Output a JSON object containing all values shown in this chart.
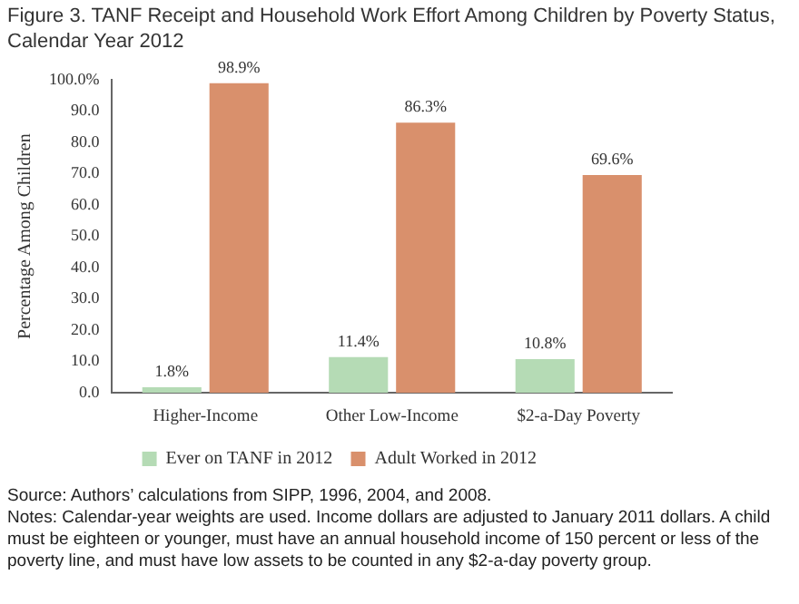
{
  "chart_data": {
    "type": "bar",
    "title": "Figure 3. TANF Receipt and Household Work Effort Among Children by Poverty Status, Calendar Year 2012",
    "ylabel": "Percentage Among Children",
    "categories": [
      "Higher-Income",
      "Other Low-Income",
      "$2-a-Day Poverty"
    ],
    "series": [
      {
        "name": "Ever on TANF in 2012",
        "color": "#b5dbb5",
        "values": [
          1.8,
          11.4,
          10.8
        ],
        "value_labels": [
          "1.8%",
          "11.4%",
          "10.8%"
        ]
      },
      {
        "name": "Adult Worked in 2012",
        "color": "#d9906c",
        "values": [
          98.9,
          86.3,
          69.6
        ],
        "value_labels": [
          "98.9%",
          "86.3%",
          "69.6%"
        ]
      }
    ],
    "ylim": [
      0,
      100
    ],
    "yticks": [
      {
        "value": 0,
        "label": "0.0"
      },
      {
        "value": 10,
        "label": "10.0"
      },
      {
        "value": 20,
        "label": "20.0"
      },
      {
        "value": 30,
        "label": "30.0"
      },
      {
        "value": 40,
        "label": "40.0"
      },
      {
        "value": 50,
        "label": "50.0"
      },
      {
        "value": 60,
        "label": "60.0"
      },
      {
        "value": 70,
        "label": "70.0"
      },
      {
        "value": 80,
        "label": "80.0"
      },
      {
        "value": 90,
        "label": "90.0"
      },
      {
        "value": 100,
        "label": "100.0%"
      }
    ],
    "grid": false,
    "legend": "bottom",
    "annotations": [
      "Source: Authors’ calculations from SIPP, 1996, 2004, and 2008.",
      "Notes: Calendar-year weights are used. Income dollars are adjusted to January 2011 dollars. A child must be eighteen or younger, must have an annual household income of 150 percent or less of the poverty line, and must have low assets to be counted in any $2-a-day poverty group."
    ]
  }
}
